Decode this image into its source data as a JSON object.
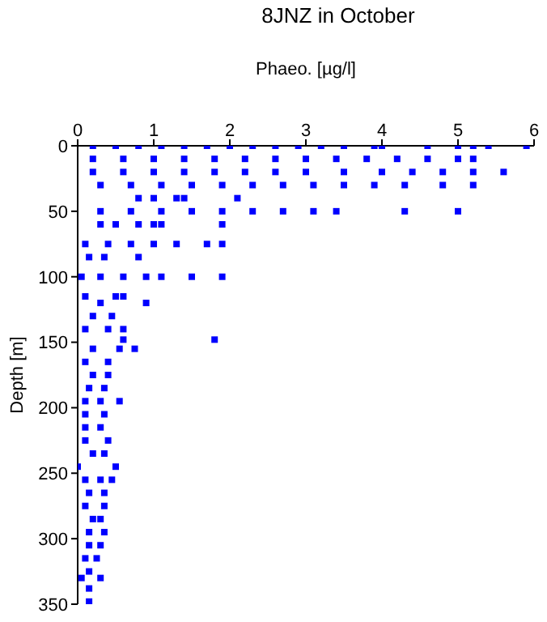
{
  "chart_data": {
    "type": "scatter",
    "title": "8JNZ in October",
    "xlabel": "Phaeo. [µg/l]",
    "ylabel": "Depth [m]",
    "x": [
      0.2,
      0.5,
      0.8,
      1.1,
      1.4,
      1.7,
      2.0,
      2.3,
      2.6,
      2.9,
      3.2,
      3.5,
      3.9,
      4.0,
      4.6,
      5.0,
      5.2,
      5.4,
      5.9,
      0.2,
      0.6,
      1.0,
      1.4,
      1.8,
      2.2,
      2.6,
      3.0,
      3.4,
      3.8,
      4.2,
      4.6,
      5.0,
      5.2,
      0.2,
      0.6,
      1.0,
      1.4,
      1.8,
      2.2,
      2.6,
      3.0,
      3.5,
      4.0,
      4.4,
      4.8,
      5.2,
      5.6,
      0.3,
      0.7,
      1.1,
      1.5,
      1.9,
      2.3,
      2.7,
      3.1,
      3.5,
      3.9,
      4.3,
      4.8,
      5.2,
      0.8,
      1.0,
      1.3,
      1.4,
      2.1,
      0.3,
      0.7,
      1.1,
      1.5,
      1.9,
      2.3,
      2.7,
      3.1,
      3.4,
      4.3,
      5.0,
      0.3,
      0.5,
      0.8,
      1.0,
      1.1,
      1.9,
      0.1,
      0.4,
      0.7,
      1.0,
      1.3,
      1.7,
      1.9,
      0.15,
      0.35,
      0.8,
      0.05,
      0.3,
      0.6,
      0.9,
      1.1,
      1.5,
      1.9,
      0.1,
      0.5,
      0.6,
      0.3,
      0.9,
      0.2,
      0.45,
      0.1,
      0.4,
      0.6,
      0.6,
      1.8,
      0.2,
      0.55,
      0.75,
      0.1,
      0.4,
      0.2,
      0.4,
      0.15,
      0.35,
      0.1,
      0.3,
      0.55,
      0.1,
      0.35,
      0.1,
      0.3,
      0.1,
      0.4,
      0.2,
      0.35,
      0.0,
      0.5,
      0.1,
      0.3,
      0.45,
      0.15,
      0.35,
      0.1,
      0.35,
      0.2,
      0.3,
      0.15,
      0.35,
      0.15,
      0.3,
      0.1,
      0.25,
      0.15,
      0.05,
      0.3,
      0.15,
      0.15
    ],
    "series": [
      {
        "color": "#0000ff",
        "values": [
          0,
          0,
          0,
          0,
          0,
          0,
          0,
          0,
          0,
          0,
          0,
          0,
          0,
          0,
          0,
          0,
          0,
          0,
          0,
          10,
          10,
          10,
          10,
          10,
          10,
          10,
          10,
          10,
          10,
          10,
          10,
          10,
          10,
          20,
          20,
          20,
          20,
          20,
          20,
          20,
          20,
          20,
          20,
          20,
          20,
          20,
          20,
          30,
          30,
          30,
          30,
          30,
          30,
          30,
          30,
          30,
          30,
          30,
          30,
          30,
          40,
          40,
          40,
          40,
          40,
          50,
          50,
          50,
          50,
          50,
          50,
          50,
          50,
          50,
          50,
          50,
          60,
          60,
          60,
          60,
          60,
          60,
          75,
          75,
          75,
          75,
          75,
          75,
          75,
          85,
          85,
          85,
          100,
          100,
          100,
          100,
          100,
          100,
          100,
          115,
          115,
          115,
          120,
          120,
          130,
          130,
          140,
          140,
          140,
          148,
          148,
          155,
          155,
          155,
          165,
          165,
          175,
          175,
          185,
          185,
          195,
          195,
          195,
          205,
          205,
          215,
          215,
          225,
          225,
          235,
          235,
          245,
          245,
          255,
          255,
          255,
          265,
          265,
          275,
          275,
          285,
          285,
          295,
          295,
          305,
          305,
          315,
          315,
          325,
          330,
          330,
          338,
          348
        ]
      }
    ],
    "xlim": [
      0,
      6
    ],
    "xticks": [
      0,
      1,
      2,
      3,
      4,
      5,
      6
    ],
    "ylim": [
      350,
      0
    ],
    "yticks": [
      0,
      50,
      100,
      150,
      200,
      250,
      300,
      350
    ],
    "marker": "square",
    "grid": false,
    "legend": false
  }
}
